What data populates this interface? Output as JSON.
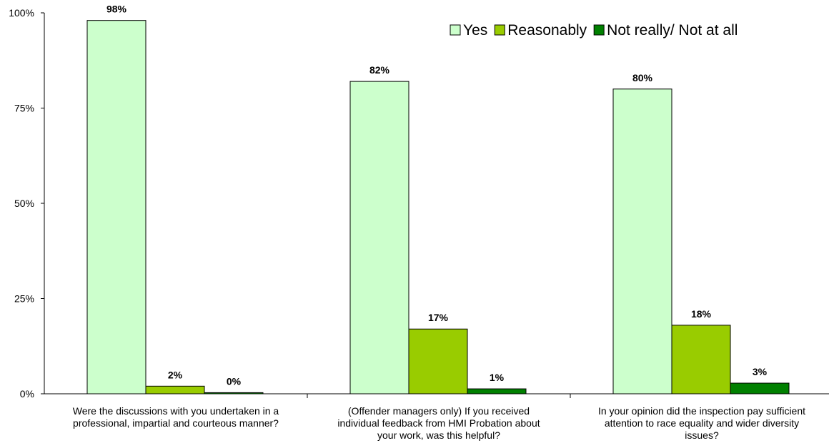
{
  "chart_data": {
    "type": "bar",
    "categories": [
      [
        "Were the discussions with you undertaken in a",
        "professional, impartial and courteous manner?"
      ],
      [
        "(Offender managers only) If you received",
        "individual feedback from HMI Probation about",
        "your work, was this helpful?"
      ],
      [
        "In your opinion did the inspection pay sufficient",
        "attention to race equality and wider diversity",
        "issues?"
      ]
    ],
    "series": [
      {
        "name": "Yes",
        "values": [
          98,
          82,
          80
        ],
        "labels": [
          "98%",
          "82%",
          "80%"
        ],
        "color": "#ccffcc"
      },
      {
        "name": "Reasonably",
        "values": [
          2,
          17,
          18
        ],
        "labels": [
          "2%",
          "17%",
          "18%"
        ],
        "color": "#99cc00"
      },
      {
        "name": "Not really/ Not at all",
        "values": [
          0.3,
          1.3,
          2.8
        ],
        "labels": [
          "0%",
          "1%",
          "3%"
        ],
        "color": "#008000"
      }
    ],
    "yticks": [
      0,
      25,
      50,
      75,
      100
    ],
    "ytick_labels": [
      "0%",
      "25%",
      "50%",
      "75%",
      "100%"
    ],
    "ylim": [
      0,
      100
    ],
    "grid": false,
    "legend_position": "top-right"
  }
}
